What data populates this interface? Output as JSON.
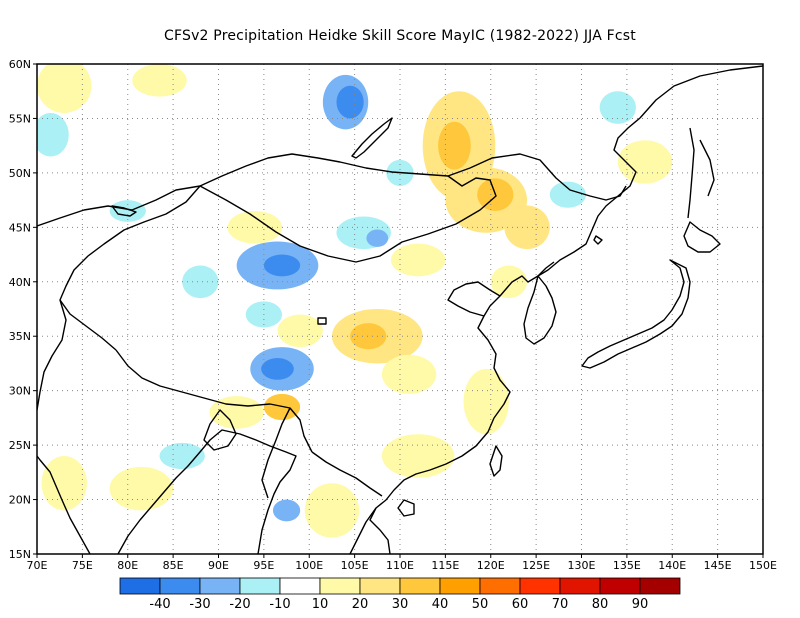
{
  "title": "CFSv2  Precipitation Heidke Skill Score MayIC (1982-2022) JJA Fcst",
  "map": {
    "lon_range": [
      70,
      150
    ],
    "lat_range": [
      15,
      60
    ],
    "lon_ticks": [
      "70E",
      "75E",
      "80E",
      "85E",
      "90E",
      "95E",
      "100E",
      "105E",
      "110E",
      "115E",
      "120E",
      "125E",
      "130E",
      "135E",
      "140E",
      "145E",
      "150E"
    ],
    "lat_ticks": [
      "15N",
      "20N",
      "25N",
      "30N",
      "35N",
      "40N",
      "45N",
      "50N",
      "55N",
      "60N"
    ]
  },
  "colorbar": {
    "colors": [
      "#1e6ee6",
      "#3c8cf0",
      "#78b4f5",
      "#aaf0f5",
      "#ffffff",
      "#fffaa8",
      "#ffe682",
      "#ffc83c",
      "#ffa000",
      "#ff6e00",
      "#ff3200",
      "#e11400",
      "#c00000",
      "#a50000"
    ],
    "labels": [
      "-40",
      "-30",
      "-20",
      "-10",
      "10",
      "20",
      "30",
      "40",
      "50",
      "60",
      "70",
      "80",
      "90"
    ]
  },
  "skill_patches": [
    {
      "lon": 116.5,
      "lat": 52.5,
      "rlon": 4.0,
      "rlat": 5.0,
      "level": 2
    },
    {
      "lon": 116.0,
      "lat": 52.5,
      "rlon": 1.8,
      "rlat": 2.2,
      "level": 3
    },
    {
      "lon": 119.5,
      "lat": 47.5,
      "rlon": 4.5,
      "rlat": 3.0,
      "level": 2
    },
    {
      "lon": 120.5,
      "lat": 48.0,
      "rlon": 2.0,
      "rlat": 1.5,
      "level": 3
    },
    {
      "lon": 124.0,
      "lat": 45.0,
      "rlon": 2.5,
      "rlat": 2.0,
      "level": 2
    },
    {
      "lon": 107.5,
      "lat": 35.0,
      "rlon": 5.0,
      "rlat": 2.5,
      "level": 2
    },
    {
      "lon": 106.5,
      "lat": 35.0,
      "rlon": 2.0,
      "rlat": 1.2,
      "level": 3
    },
    {
      "lon": 111.0,
      "lat": 31.5,
      "rlon": 3.0,
      "rlat": 1.8,
      "level": 1
    },
    {
      "lon": 119.5,
      "lat": 29.0,
      "rlon": 2.5,
      "rlat": 3.0,
      "level": 1
    },
    {
      "lon": 112.0,
      "lat": 24.0,
      "rlon": 4.0,
      "rlat": 2.0,
      "level": 1
    },
    {
      "lon": 97.0,
      "lat": 28.5,
      "rlon": 2.0,
      "rlat": 1.2,
      "level": 3
    },
    {
      "lon": 92.0,
      "lat": 28.0,
      "rlon": 3.0,
      "rlat": 1.5,
      "level": 1
    },
    {
      "lon": 102.5,
      "lat": 19.0,
      "rlon": 3.0,
      "rlat": 2.5,
      "level": 1
    },
    {
      "lon": 81.5,
      "lat": 21.0,
      "rlon": 3.5,
      "rlat": 2.0,
      "level": 1
    },
    {
      "lon": 73.0,
      "lat": 21.5,
      "rlon": 2.5,
      "rlat": 2.5,
      "level": 1
    },
    {
      "lon": 83.5,
      "lat": 58.5,
      "rlon": 3.0,
      "rlat": 1.5,
      "level": 1
    },
    {
      "lon": 73.0,
      "lat": 58.0,
      "rlon": 3.0,
      "rlat": 2.5,
      "level": 1
    },
    {
      "lon": 122.0,
      "lat": 40.0,
      "rlon": 2.0,
      "rlat": 1.5,
      "level": 1
    },
    {
      "lon": 112.0,
      "lat": 42.0,
      "rlon": 3.0,
      "rlat": 1.5,
      "level": 1
    },
    {
      "lon": 94.0,
      "lat": 45.0,
      "rlon": 3.0,
      "rlat": 1.5,
      "level": 1
    },
    {
      "lon": 137.0,
      "lat": 51.0,
      "rlon": 3.0,
      "rlat": 2.0,
      "level": 1
    },
    {
      "lon": 99.0,
      "lat": 35.5,
      "rlon": 2.5,
      "rlat": 1.5,
      "level": 1
    },
    {
      "lon": 104.0,
      "lat": 56.5,
      "rlon": 2.5,
      "rlat": 2.5,
      "level": -2
    },
    {
      "lon": 104.5,
      "lat": 56.5,
      "rlon": 1.5,
      "rlat": 1.5,
      "level": -3
    },
    {
      "lon": 96.5,
      "lat": 41.5,
      "rlon": 4.5,
      "rlat": 2.2,
      "level": -2
    },
    {
      "lon": 97.0,
      "lat": 41.5,
      "rlon": 2.0,
      "rlat": 1.0,
      "level": -3
    },
    {
      "lon": 97.0,
      "lat": 32.0,
      "rlon": 3.5,
      "rlat": 2.0,
      "level": -2
    },
    {
      "lon": 96.5,
      "lat": 32.0,
      "rlon": 1.8,
      "rlat": 1.0,
      "level": -3
    },
    {
      "lon": 106.0,
      "lat": 44.5,
      "rlon": 3.0,
      "rlat": 1.5,
      "level": -1
    },
    {
      "lon": 107.5,
      "lat": 44.0,
      "rlon": 1.2,
      "rlat": 0.8,
      "level": -2
    },
    {
      "lon": 71.5,
      "lat": 53.5,
      "rlon": 2.0,
      "rlat": 2.0,
      "level": -1
    },
    {
      "lon": 86.0,
      "lat": 24.0,
      "rlon": 2.5,
      "rlat": 1.2,
      "level": -1
    },
    {
      "lon": 97.5,
      "lat": 19.0,
      "rlon": 1.5,
      "rlat": 1.0,
      "level": -2
    },
    {
      "lon": 128.5,
      "lat": 48.0,
      "rlon": 2.0,
      "rlat": 1.2,
      "level": -1
    },
    {
      "lon": 134.0,
      "lat": 56.0,
      "rlon": 2.0,
      "rlat": 1.5,
      "level": -1
    },
    {
      "lon": 88.0,
      "lat": 40.0,
      "rlon": 2.0,
      "rlat": 1.5,
      "level": -1
    },
    {
      "lon": 95.0,
      "lat": 37.0,
      "rlon": 2.0,
      "rlat": 1.2,
      "level": -1
    },
    {
      "lon": 110.0,
      "lat": 50.0,
      "rlon": 1.5,
      "rlat": 1.2,
      "level": -1
    },
    {
      "lon": 80.0,
      "lat": 46.5,
      "rlon": 2.0,
      "rlat": 1.0,
      "level": -1
    }
  ]
}
